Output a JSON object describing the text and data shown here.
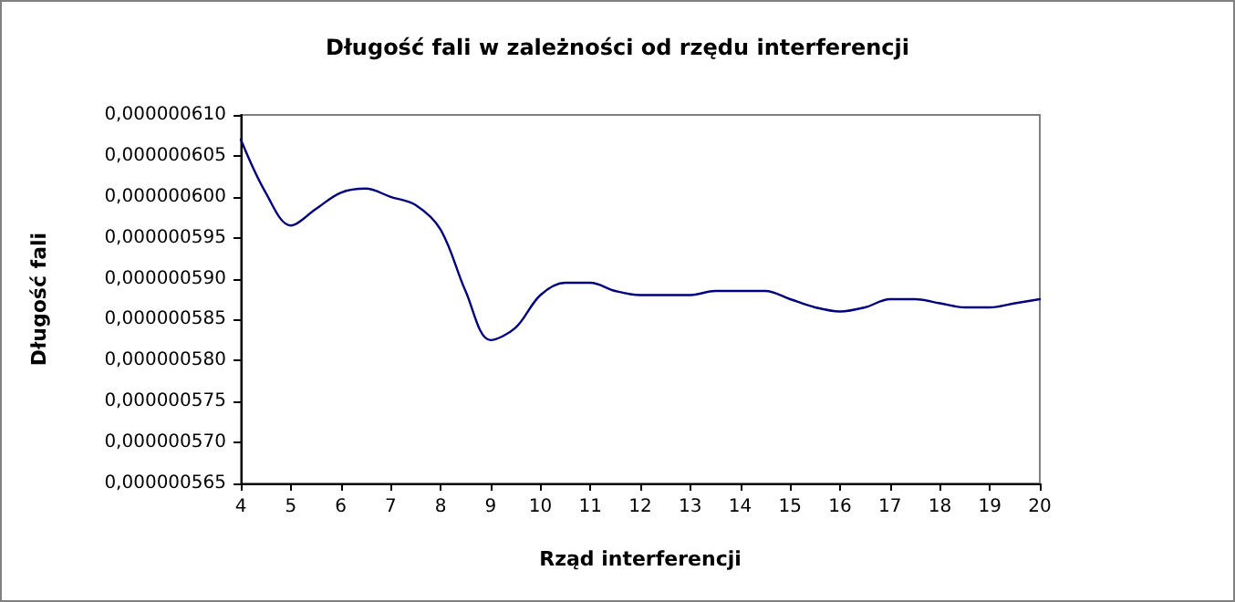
{
  "chart_data": {
    "type": "line",
    "title": "Długość fali w zależności od rzędu interferencji",
    "xlabel": "Rząd interferencji",
    "ylabel": "Długość fali",
    "x": [
      4,
      4.5,
      5,
      5.5,
      6,
      6.5,
      7,
      7.5,
      8,
      8.5,
      9,
      9.5,
      10,
      10.5,
      11,
      11.5,
      12,
      13,
      13.5,
      14,
      14.5,
      15,
      15.5,
      16,
      16.5,
      17,
      17.5,
      18,
      18.5,
      19,
      19.5,
      20
    ],
    "series": [
      {
        "color": "#000080",
        "values": [
          6.07e-07,
          6.005e-07,
          5.965e-07,
          5.985e-07,
          6.005e-07,
          6.01e-07,
          6e-07,
          5.99e-07,
          5.96e-07,
          5.885e-07,
          5.825e-07,
          5.84e-07,
          5.88e-07,
          5.895e-07,
          5.895e-07,
          5.885e-07,
          5.88e-07,
          5.88e-07,
          5.885e-07,
          5.885e-07,
          5.885e-07,
          5.875e-07,
          5.865e-07,
          5.86e-07,
          5.865e-07,
          5.875e-07,
          5.875e-07,
          5.87e-07,
          5.865e-07,
          5.865e-07,
          5.87e-07,
          5.875e-07
        ]
      }
    ],
    "xlim": [
      4,
      20
    ],
    "xticks": [
      4,
      5,
      6,
      7,
      8,
      9,
      10,
      11,
      12,
      13,
      14,
      15,
      16,
      17,
      18,
      19,
      20
    ],
    "ylim": [
      5.65e-07,
      6.1e-07
    ],
    "yticks": [
      {
        "value": 5.65e-07,
        "label": "0,000000565"
      },
      {
        "value": 5.7e-07,
        "label": "0,000000570"
      },
      {
        "value": 5.75e-07,
        "label": "0,000000575"
      },
      {
        "value": 5.8e-07,
        "label": "0,000000580"
      },
      {
        "value": 5.85e-07,
        "label": "0,000000585"
      },
      {
        "value": 5.9e-07,
        "label": "0,000000590"
      },
      {
        "value": 5.95e-07,
        "label": "0,000000595"
      },
      {
        "value": 6e-07,
        "label": "0,000000600"
      },
      {
        "value": 6.05e-07,
        "label": "0,000000605"
      },
      {
        "value": 6.1e-07,
        "label": "0,000000610"
      }
    ],
    "grid": false,
    "marker": "none",
    "line_style": "solid"
  }
}
